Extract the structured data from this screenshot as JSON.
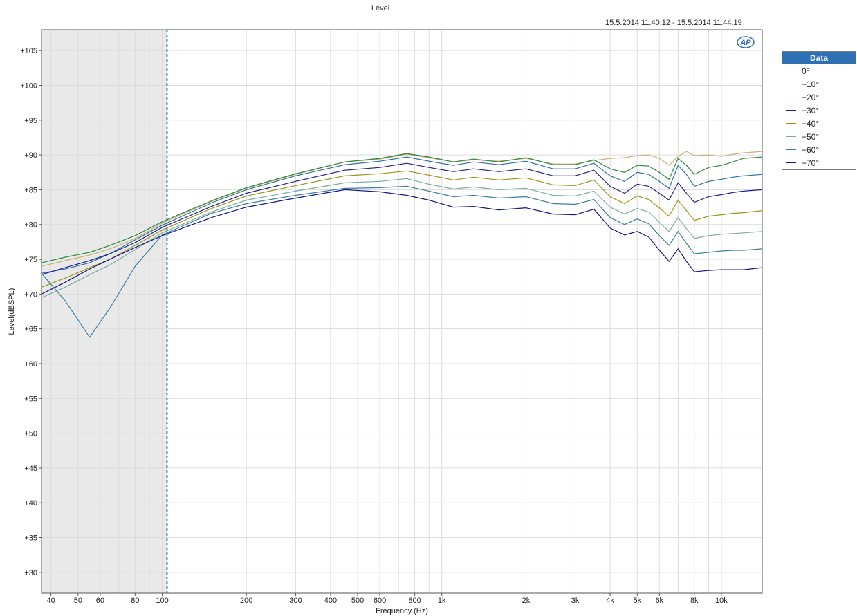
{
  "chart_data": {
    "type": "line",
    "title": "Level",
    "subtitle": "15.5.2014 11:40:12 -    15.5.2014 11:44:19",
    "xlabel": "Frequency (Hz)",
    "ylabel": "Level(dBSPL)",
    "x_scale": "log",
    "xlim": [
      37,
      14000
    ],
    "ylim": [
      27,
      108
    ],
    "grid": true,
    "legend_placement": "right",
    "legend_title": "Data",
    "x_ticks": [
      40,
      50,
      60,
      80,
      100,
      200,
      300,
      400,
      500,
      600,
      800,
      1000,
      2000,
      3000,
      4000,
      5000,
      6000,
      8000,
      10000
    ],
    "x_tick_labels": [
      "40",
      "50",
      "60",
      "80",
      "100",
      "200",
      "300",
      "400",
      "500",
      "600",
      "800",
      "1k",
      "2k",
      "3k",
      "4k",
      "5k",
      "6k",
      "8k",
      "10k"
    ],
    "y_ticks": [
      30,
      35,
      40,
      45,
      50,
      55,
      60,
      65,
      70,
      75,
      80,
      85,
      90,
      95,
      100,
      105
    ],
    "y_tick_labels": [
      "+30",
      "+35",
      "+40",
      "+45",
      "+50",
      "+55",
      "+60",
      "+65",
      "+70",
      "+75",
      "+80",
      "+85",
      "+90",
      "+95",
      "+100",
      "+105"
    ],
    "shaded_region": {
      "x_from": 37,
      "x_to": 104,
      "color": "#e9e9e9"
    },
    "cursor_x": 104,
    "x": [
      37,
      45,
      55,
      65,
      80,
      100,
      150,
      200,
      300,
      450,
      600,
      750,
      900,
      1100,
      1300,
      1600,
      2000,
      2500,
      3000,
      3500,
      4000,
      4500,
      5000,
      5500,
      6000,
      6500,
      7000,
      7500,
      8000,
      9000,
      10000,
      11000,
      12000,
      14000
    ],
    "series": [
      {
        "name": "0°",
        "color": "#c8b078",
        "values": [
          74,
          74.8,
          75.6,
          76.5,
          78,
          80.2,
          83.3,
          85.2,
          87.2,
          89,
          89.4,
          90.1,
          89.6,
          89,
          89.3,
          89.1,
          89.5,
          88.7,
          88.7,
          89.2,
          89.5,
          89.6,
          89.9,
          90,
          89.5,
          88.5,
          89.8,
          90.5,
          89.9,
          90,
          89.8,
          90.1,
          90.3,
          90.5
        ]
      },
      {
        "name": "+10°",
        "color": "#2b8a3e",
        "values": [
          74.5,
          75.3,
          76,
          77,
          78.4,
          80.4,
          83.4,
          85.3,
          87.3,
          89,
          89.5,
          90.2,
          89.7,
          89,
          89.4,
          89,
          89.6,
          88.6,
          88.6,
          89.3,
          88,
          87.5,
          88.5,
          88.4,
          87.5,
          86.5,
          89.5,
          88.5,
          87.2,
          88.2,
          88.5,
          89,
          89.5,
          89.7
        ]
      },
      {
        "name": "+20°",
        "color": "#2e6fa0",
        "values": [
          73,
          73.6,
          74.5,
          75.8,
          77.8,
          79.9,
          83.1,
          85,
          87,
          88.6,
          89.1,
          89.7,
          89.1,
          88.5,
          89,
          88.6,
          89.1,
          88,
          88,
          88.8,
          87,
          86.2,
          87.5,
          87.2,
          86.2,
          85.2,
          88.5,
          87.2,
          85.5,
          86.2,
          86.5,
          86.8,
          87,
          87.2
        ]
      },
      {
        "name": "+30°",
        "color": "#1e1e90",
        "values": [
          72.8,
          73.8,
          74.8,
          75.8,
          77.4,
          79.6,
          82.6,
          84.5,
          86.2,
          87.8,
          88.2,
          88.8,
          88.2,
          87.6,
          88,
          87.6,
          88,
          87,
          87,
          87.8,
          85.5,
          84.5,
          85.8,
          85.5,
          84.5,
          83.5,
          86,
          84.5,
          83.2,
          84,
          84.3,
          84.6,
          84.8,
          85
        ]
      },
      {
        "name": "+40°",
        "color": "#9a9418",
        "values": [
          71,
          72.3,
          73.8,
          75,
          77,
          79.2,
          82.3,
          84.1,
          85.6,
          87,
          87.3,
          87.7,
          87.1,
          86.4,
          86.8,
          86.4,
          86.7,
          85.7,
          85.6,
          86.4,
          84,
          83,
          84.1,
          83.6,
          82.4,
          81.2,
          83.5,
          82,
          80.6,
          81.2,
          81.4,
          81.6,
          81.7,
          82
        ]
      },
      {
        "name": "+50°",
        "color": "#7aaca0",
        "values": [
          69.5,
          71,
          72.8,
          74.2,
          76.4,
          78.8,
          81.8,
          83.5,
          84.8,
          86,
          86.2,
          86.6,
          85.8,
          85.1,
          85.4,
          85,
          85.2,
          84.2,
          84.1,
          84.8,
          82.5,
          81.5,
          82.3,
          81.8,
          80.3,
          79,
          81,
          79.4,
          78,
          78.4,
          78.6,
          78.7,
          78.8,
          79
        ]
      },
      {
        "name": "+60°",
        "color": "#3b7f9e",
        "values": [
          73,
          69,
          63.8,
          68,
          74,
          78.5,
          81.6,
          83,
          84.2,
          85.2,
          85.3,
          85.5,
          84.8,
          84,
          84.2,
          83.8,
          84,
          83,
          82.9,
          83.6,
          81,
          80,
          80.8,
          80.1,
          78.4,
          77,
          79,
          77.3,
          75.8,
          76,
          76.2,
          76.3,
          76.3,
          76.5
        ]
      },
      {
        "name": "+70°",
        "color": "#15158a",
        "values": [
          70,
          71.7,
          73.6,
          75,
          76.7,
          78.4,
          81,
          82.5,
          83.8,
          85,
          84.7,
          84.2,
          83.5,
          82.5,
          82.6,
          82.1,
          82.4,
          81.5,
          81.4,
          82.2,
          79.5,
          78.5,
          79,
          78.2,
          76.3,
          74.7,
          76.5,
          74.7,
          73.2,
          73.4,
          73.5,
          73.5,
          73.5,
          73.8
        ]
      }
    ]
  },
  "ui": {
    "logo_text": "AP"
  }
}
